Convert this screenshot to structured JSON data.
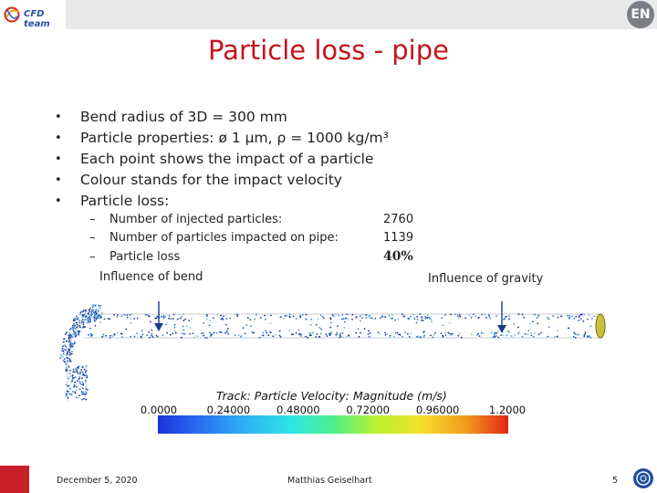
{
  "header": {
    "logo_text": "CFD team",
    "badge": "EN"
  },
  "title": "Particle loss - pipe",
  "bullets": [
    {
      "marker": "•",
      "text": "Bend radius of 3D = 300 mm"
    },
    {
      "marker": "•",
      "text": "Particle properties: ø 1 μm, ρ = 1000 kg/m³"
    },
    {
      "marker": "•",
      "text": "Each point shows the impact of a particle"
    },
    {
      "marker": "•",
      "text": "Colour stands for the impact velocity"
    },
    {
      "marker": "•",
      "text": "Particle loss:"
    }
  ],
  "particle_loss": [
    {
      "dash": "–",
      "label": "Number of injected particles:",
      "value": "2760"
    },
    {
      "dash": "–",
      "label": "Number of particles impacted on pipe:",
      "value": "1139"
    },
    {
      "dash": "–",
      "label": "Particle loss",
      "value": "40%"
    }
  ],
  "annotations": {
    "bend": "Influence of bend",
    "gravity": "Influence of gravity"
  },
  "legend": {
    "title": "Track: Particle Velocity: Magnitude (m/s)",
    "ticks": [
      "0.0000",
      "0.24000",
      "0.48000",
      "0.72000",
      "0.96000",
      "1.2000"
    ],
    "range": [
      0,
      1.2
    ],
    "colors": [
      "#1a33d9",
      "#2fb1f4",
      "#2ee5e5",
      "#4cf08a",
      "#f2e22c",
      "#e02617"
    ]
  },
  "footer": {
    "date": "December 5, 2020",
    "author": "Matthias Geiselhart",
    "page": "5"
  }
}
